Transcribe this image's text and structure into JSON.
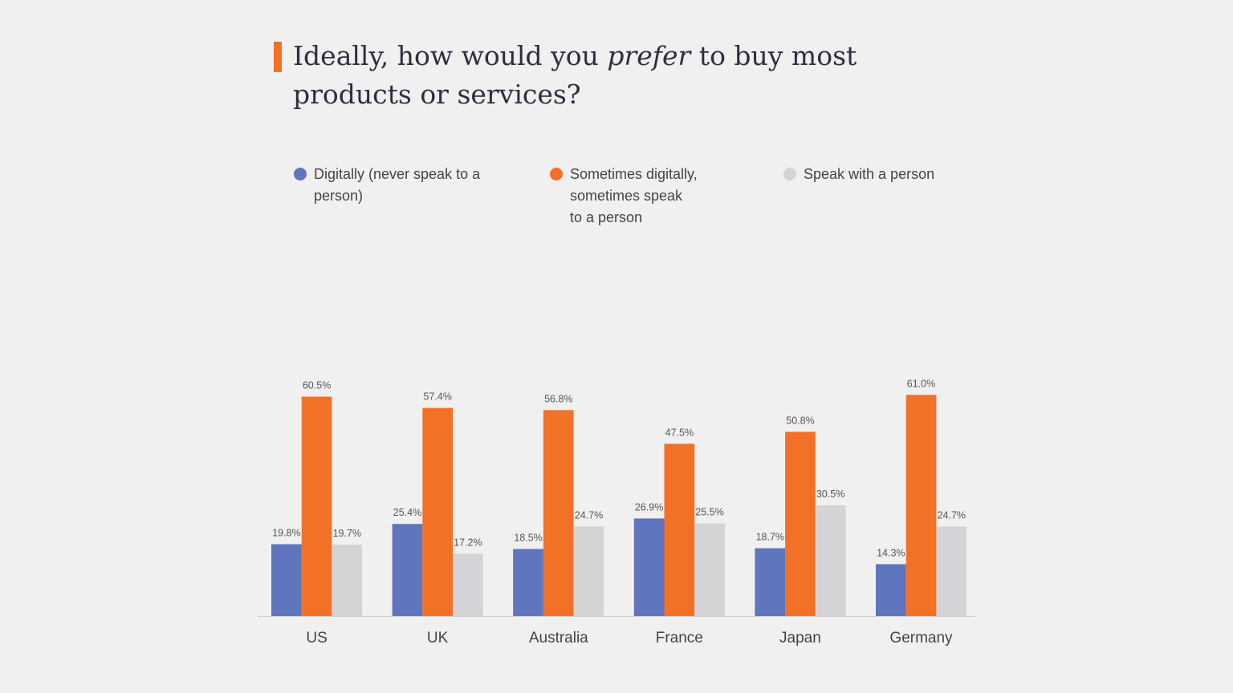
{
  "chart_data": {
    "type": "bar",
    "title": {
      "before": "Ideally, how would you ",
      "emphasis": "prefer",
      "after": " to buy most products or services?"
    },
    "categories": [
      "US",
      "UK",
      "Australia",
      "France",
      "Japan",
      "Germany"
    ],
    "series": [
      {
        "name": "Digitally (never speak to a person)",
        "legend_lines": [
          "Digitally (never speak to a",
          "person)"
        ],
        "color": "#5f75bd",
        "values": [
          19.8,
          25.4,
          18.5,
          26.9,
          18.7,
          14.3
        ],
        "labels": [
          "19.8%",
          "25.4%",
          "18.5%",
          "26.9%",
          "18.7%",
          "14.3%"
        ]
      },
      {
        "name": "Sometimes digitally, sometimes speak to a person",
        "legend_lines": [
          "Sometimes digitally,",
          "sometimes speak",
          "to a person"
        ],
        "color": "#f37027",
        "values": [
          60.5,
          57.4,
          56.8,
          47.5,
          50.8,
          61.0
        ],
        "labels": [
          "60.5%",
          "57.4%",
          "56.8%",
          "47.5%",
          "50.8%",
          "61.0%"
        ]
      },
      {
        "name": "Speak with a person",
        "legend_lines": [
          "Speak with a person"
        ],
        "color": "#d4d4d6",
        "values": [
          19.7,
          17.2,
          24.7,
          25.5,
          30.5,
          24.7
        ],
        "labels": [
          "19.7%",
          "17.2%",
          "24.7%",
          "25.5%",
          "30.5%",
          "24.7%"
        ]
      }
    ],
    "ylim": [
      0,
      61
    ],
    "grid": false,
    "legend_position": "top",
    "xlabel": "",
    "ylabel": ""
  },
  "colors": {
    "background": "#f0f0f0",
    "accent": "#f37027",
    "axis": "#cfcfcf"
  }
}
